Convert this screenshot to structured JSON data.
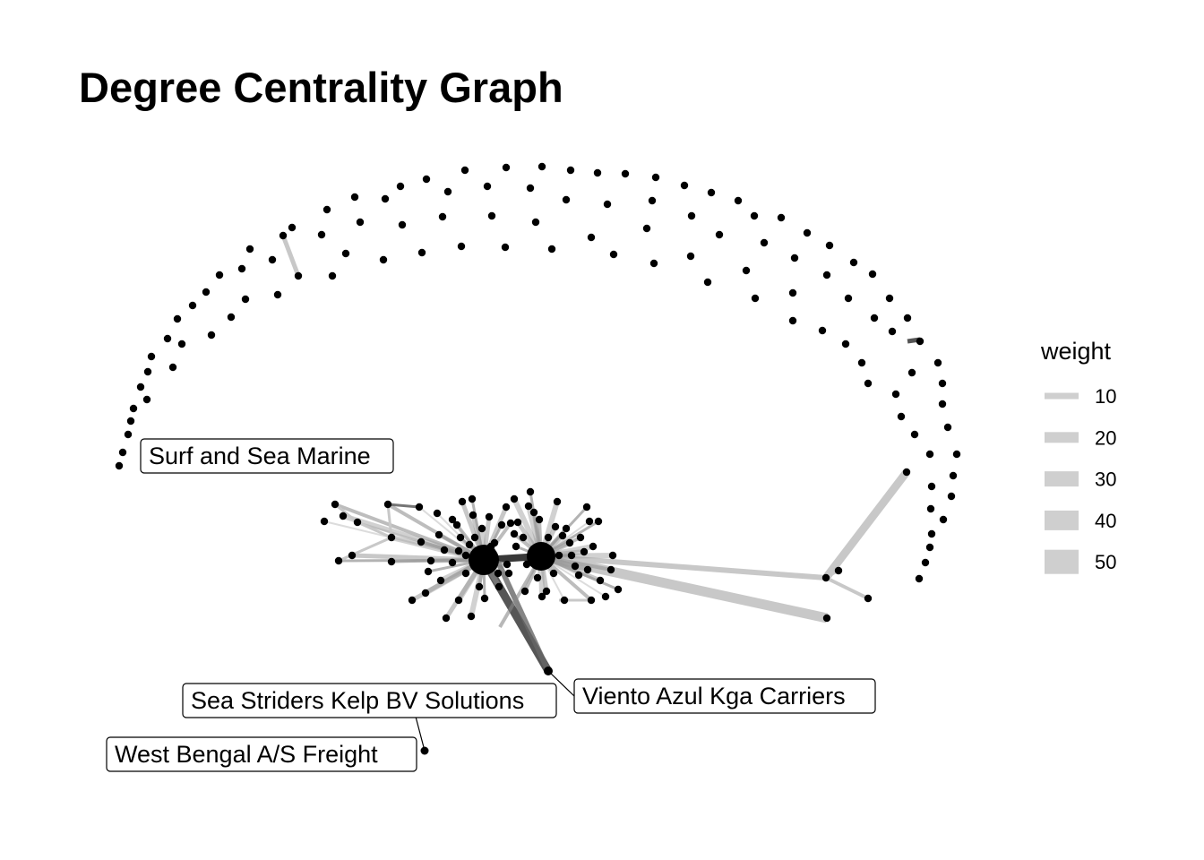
{
  "title": "Degree Centrality Graph",
  "legend": {
    "title": "weight",
    "items": [
      "10",
      "20",
      "30",
      "40",
      "50"
    ],
    "color": "#cfcfcf"
  },
  "labels": [
    "Surf and Sea Marine",
    "Sea Striders Kelp BV Solutions",
    "Viento Azul Kga Carriers",
    "West Bengal  A/S Freight"
  ],
  "colors": {
    "node": "#000000",
    "edge_light": "#c8c8c8",
    "edge_dark": "#333333",
    "label_border": "#000000",
    "background": "#ffffff"
  }
}
